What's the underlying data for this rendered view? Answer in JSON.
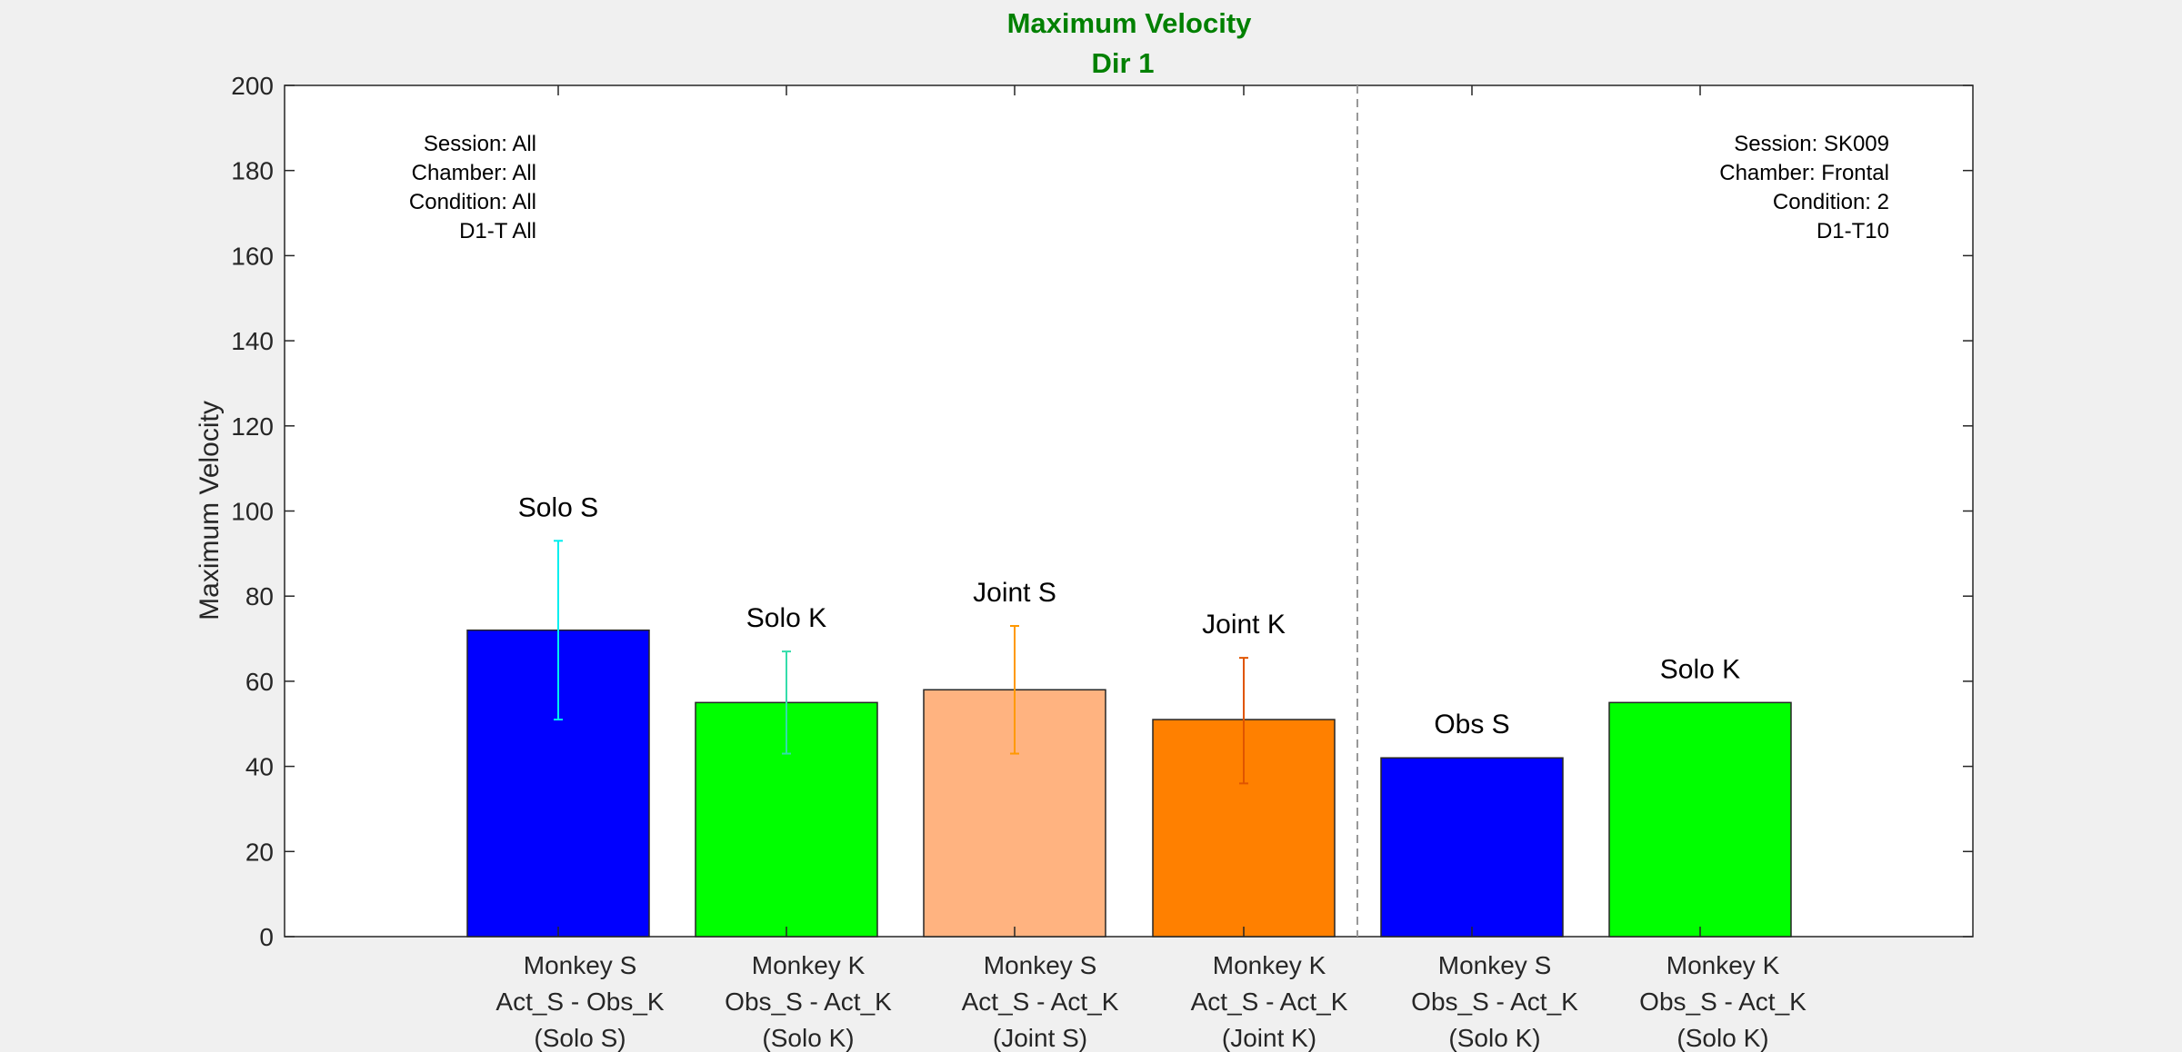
{
  "chart_data": {
    "type": "bar",
    "title": "Maximum Velocity",
    "subtitle": "Dir 1",
    "ylabel": "Maximum Velocity",
    "xlabel": "",
    "ylim": [
      0,
      200
    ],
    "yticks": [
      0,
      20,
      40,
      60,
      80,
      100,
      120,
      140,
      160,
      180,
      200
    ],
    "grid": false,
    "bars": [
      {
        "value": 72,
        "err_low": 51,
        "err_high": 93,
        "label": "Solo S",
        "tick": [
          "Monkey S",
          "Act_S - Obs_K",
          "(Solo S)"
        ],
        "color": "#0000ff",
        "err_color": "#00eeee"
      },
      {
        "value": 55,
        "err_low": 43,
        "err_high": 67,
        "label": "Solo K",
        "tick": [
          "Monkey K",
          "Obs_S - Act_K",
          "(Solo K)"
        ],
        "color": "#00ff00",
        "err_color": "#33ddaa"
      },
      {
        "value": 58,
        "err_low": 43,
        "err_high": 73,
        "label": "Joint S",
        "tick": [
          "Monkey S",
          "Act_S - Act_K",
          "(Joint S)"
        ],
        "color": "#ffb380",
        "err_color": "#ff9900"
      },
      {
        "value": 51,
        "err_low": 36,
        "err_high": 65.5,
        "label": "Joint K",
        "tick": [
          "Monkey K",
          "Act_S - Act_K",
          "(Joint K)"
        ],
        "color": "#ff8000",
        "err_color": "#e05500"
      },
      {
        "value": 42,
        "label": "Obs S",
        "tick": [
          "Monkey S",
          "Obs_S - Act_K",
          "(Solo K)"
        ],
        "color": "#0000ff"
      },
      {
        "value": 55,
        "label": "Solo K",
        "tick": [
          "Monkey K",
          "Obs_S - Act_K",
          "(Solo K)"
        ],
        "color": "#00ff00"
      }
    ],
    "annotations": {
      "left": [
        "Session: All",
        "Chamber: All",
        "Condition: All",
        "D1-T All"
      ],
      "right": [
        "Session: SK009",
        "Chamber: Frontal",
        "Condition: 2",
        "D1-T10"
      ]
    },
    "title_color": "#008000"
  }
}
